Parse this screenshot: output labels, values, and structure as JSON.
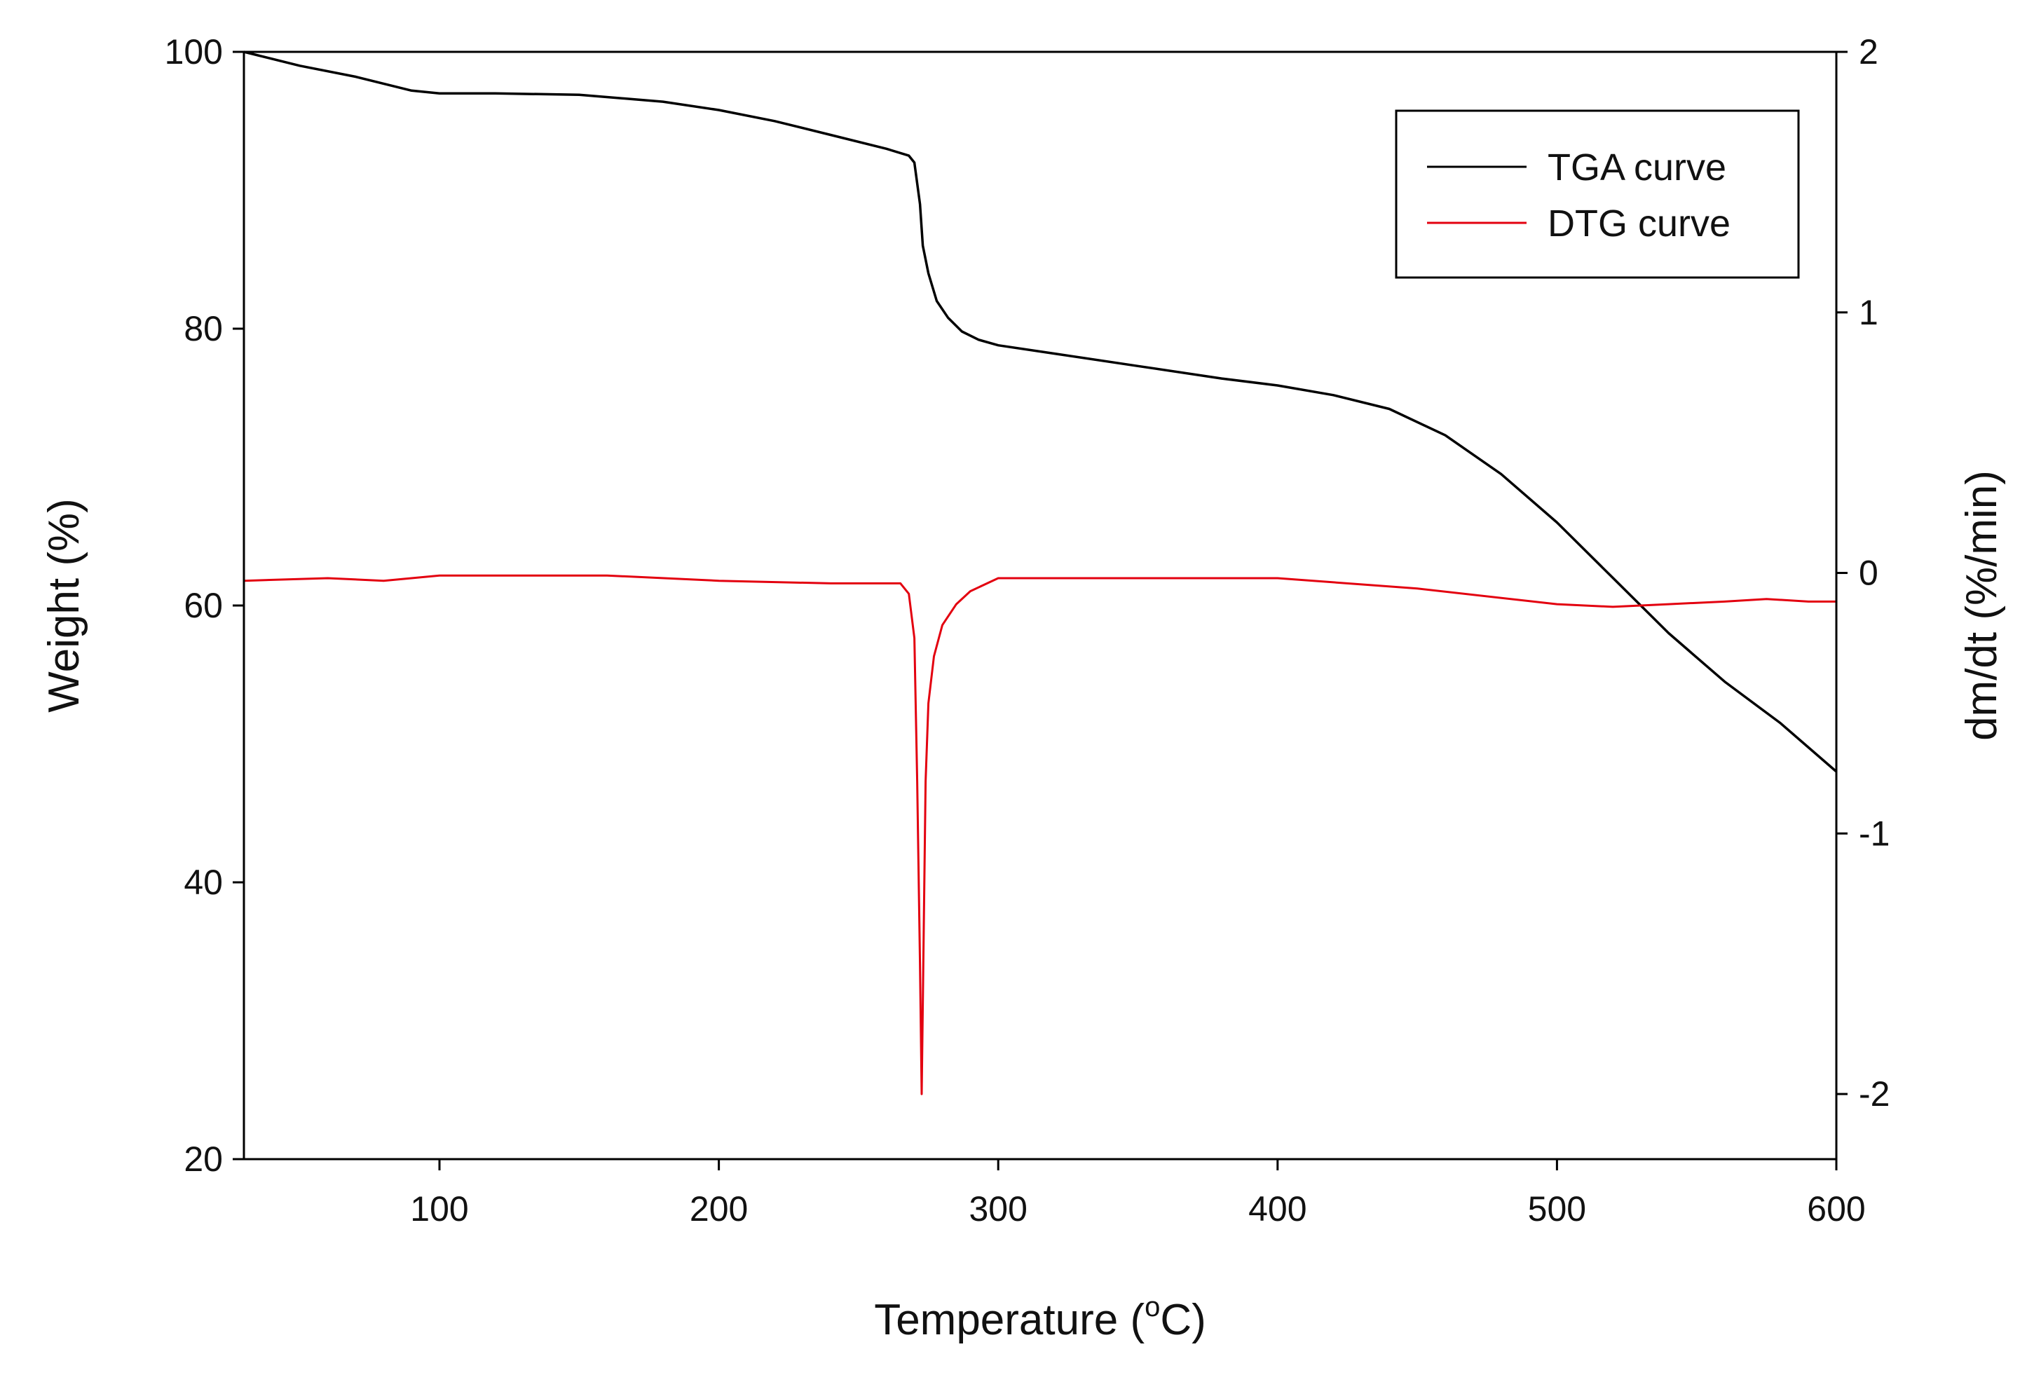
{
  "chart_data": {
    "type": "line",
    "title": "",
    "xlabel": "Temperature (",
    "xlabel_sup": "o",
    "xlabel_unit": "C)",
    "ylabel": "Weight (%)",
    "y2label": "dm/dt (%/min)",
    "xlim": [
      30,
      600
    ],
    "ylim": [
      20,
      100
    ],
    "y2lim": [
      -2.25,
      2
    ],
    "grid": false,
    "legend_position": "top-right",
    "x_ticks": [
      {
        "value": 100,
        "label": "100"
      },
      {
        "value": 200,
        "label": "200"
      },
      {
        "value": 300,
        "label": "300"
      },
      {
        "value": 400,
        "label": "400"
      },
      {
        "value": 500,
        "label": "500"
      },
      {
        "value": 600,
        "label": "600"
      }
    ],
    "y_ticks": [
      {
        "value": 20,
        "label": "20"
      },
      {
        "value": 40,
        "label": "40"
      },
      {
        "value": 60,
        "label": "60"
      },
      {
        "value": 80,
        "label": "80"
      },
      {
        "value": 100,
        "label": "100"
      }
    ],
    "y2_ticks": [
      {
        "value": -2,
        "label": "-2"
      },
      {
        "value": -1,
        "label": "-1"
      },
      {
        "value": 0,
        "label": "0"
      },
      {
        "value": 1,
        "label": "1"
      },
      {
        "value": 2,
        "label": "2"
      }
    ],
    "series": [
      {
        "name": "TGA curve",
        "axis": "left",
        "color": "#000000",
        "x": [
          30,
          50,
          70,
          90,
          100,
          120,
          150,
          180,
          200,
          220,
          240,
          260,
          268,
          270,
          272,
          273,
          275,
          278,
          282,
          287,
          293,
          300,
          320,
          350,
          380,
          400,
          420,
          440,
          460,
          480,
          500,
          520,
          540,
          560,
          580,
          600
        ],
        "y": [
          100,
          99,
          98.2,
          97.2,
          97,
          97,
          96.9,
          96.4,
          95.8,
          95,
          94,
          93,
          92.5,
          92,
          89,
          86,
          84,
          82,
          80.8,
          79.8,
          79.2,
          78.8,
          78.2,
          77.3,
          76.4,
          75.9,
          75.2,
          74.2,
          72.3,
          69.5,
          66,
          62,
          58,
          54.5,
          51.5,
          48
        ]
      },
      {
        "name": "DTG curve",
        "axis": "right",
        "color": "#e3000f",
        "x": [
          30,
          60,
          80,
          100,
          120,
          140,
          160,
          200,
          240,
          265,
          268,
          270,
          271,
          272,
          272.6,
          273.3,
          274,
          275,
          277,
          280,
          285,
          290,
          300,
          320,
          350,
          400,
          450,
          500,
          520,
          540,
          560,
          575,
          590,
          600
        ],
        "y": [
          -0.03,
          -0.02,
          -0.03,
          -0.01,
          -0.01,
          -0.01,
          -0.01,
          -0.03,
          -0.04,
          -0.04,
          -0.08,
          -0.25,
          -0.8,
          -1.5,
          -2.0,
          -1.4,
          -0.8,
          -0.5,
          -0.32,
          -0.2,
          -0.12,
          -0.07,
          -0.02,
          -0.02,
          -0.02,
          -0.02,
          -0.06,
          -0.12,
          -0.13,
          -0.12,
          -0.11,
          -0.1,
          -0.11,
          -0.11
        ]
      }
    ]
  }
}
